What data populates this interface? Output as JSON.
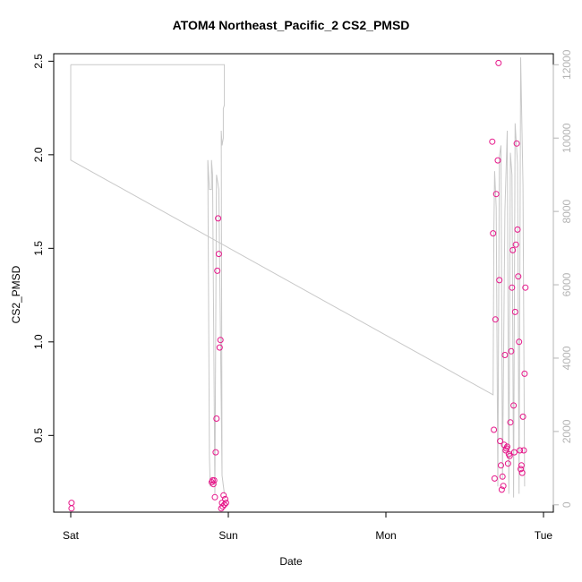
{
  "chart_data": {
    "type": "scatter",
    "title": "ATOM4 Northeast_Pacific_2 CS2_PMSD",
    "xlabel": "Date",
    "ylabel": "CS2_PMSD",
    "x_tick_labels": [
      "Sat",
      "Sun",
      "Mon",
      "Tue"
    ],
    "x_ticks_day": [
      0,
      1,
      2,
      3
    ],
    "ylim": [
      0.09,
      2.54
    ],
    "y_ticks": [
      0.5,
      1.0,
      1.5,
      2.0,
      2.5
    ],
    "y_tick_labels": [
      "0.5",
      "1.0",
      "1.5",
      "2.0",
      "2.5"
    ],
    "y2lim": [
      -200,
      12300
    ],
    "y2_ticks": [
      0,
      2000,
      4000,
      6000,
      8000,
      10000,
      12000
    ],
    "y2_tick_labels": [
      "0",
      "2000",
      "4000",
      "6000",
      "8000",
      "10000",
      "12000"
    ],
    "grid": false,
    "colors": {
      "points": "#e6178a",
      "line": "#c8c8c8",
      "axis": "#000000",
      "right_axis": "#b4b4b4"
    },
    "points": [
      {
        "x": 0.005,
        "y": 0.14
      },
      {
        "x": 0.005,
        "y": 0.11
      },
      {
        "x": 0.895,
        "y": 0.25
      },
      {
        "x": 0.9,
        "y": 0.26
      },
      {
        "x": 0.905,
        "y": 0.24
      },
      {
        "x": 0.91,
        "y": 0.26
      },
      {
        "x": 0.915,
        "y": 0.17
      },
      {
        "x": 0.92,
        "y": 0.41
      },
      {
        "x": 0.925,
        "y": 0.59
      },
      {
        "x": 0.93,
        "y": 1.38
      },
      {
        "x": 0.935,
        "y": 1.66
      },
      {
        "x": 0.94,
        "y": 1.47
      },
      {
        "x": 0.945,
        "y": 0.97
      },
      {
        "x": 0.95,
        "y": 1.01
      },
      {
        "x": 0.955,
        "y": 0.11
      },
      {
        "x": 0.96,
        "y": 0.14
      },
      {
        "x": 0.965,
        "y": 0.12
      },
      {
        "x": 0.97,
        "y": 0.18
      },
      {
        "x": 0.975,
        "y": 0.13
      },
      {
        "x": 0.98,
        "y": 0.16
      },
      {
        "x": 0.985,
        "y": 0.14
      },
      {
        "x": 2.675,
        "y": 2.07
      },
      {
        "x": 2.68,
        "y": 1.58
      },
      {
        "x": 2.685,
        "y": 0.53
      },
      {
        "x": 2.69,
        "y": 0.27
      },
      {
        "x": 2.695,
        "y": 1.12
      },
      {
        "x": 2.7,
        "y": 1.79
      },
      {
        "x": 2.71,
        "y": 1.97
      },
      {
        "x": 2.715,
        "y": 2.49
      },
      {
        "x": 2.72,
        "y": 1.33
      },
      {
        "x": 2.725,
        "y": 0.47
      },
      {
        "x": 2.73,
        "y": 0.34
      },
      {
        "x": 2.735,
        "y": 0.21
      },
      {
        "x": 2.74,
        "y": 0.28
      },
      {
        "x": 2.745,
        "y": 0.23
      },
      {
        "x": 2.75,
        "y": 0.45
      },
      {
        "x": 2.755,
        "y": 0.93
      },
      {
        "x": 2.76,
        "y": 0.42
      },
      {
        "x": 2.765,
        "y": 0.43
      },
      {
        "x": 2.77,
        "y": 0.44
      },
      {
        "x": 2.775,
        "y": 0.35
      },
      {
        "x": 2.78,
        "y": 0.4
      },
      {
        "x": 2.785,
        "y": 0.39
      },
      {
        "x": 2.79,
        "y": 0.57
      },
      {
        "x": 2.795,
        "y": 0.95
      },
      {
        "x": 2.8,
        "y": 1.29
      },
      {
        "x": 2.805,
        "y": 1.49
      },
      {
        "x": 2.81,
        "y": 0.66
      },
      {
        "x": 2.815,
        "y": 0.41
      },
      {
        "x": 2.82,
        "y": 1.16
      },
      {
        "x": 2.825,
        "y": 1.52
      },
      {
        "x": 2.83,
        "y": 2.06
      },
      {
        "x": 2.835,
        "y": 1.6
      },
      {
        "x": 2.84,
        "y": 1.35
      },
      {
        "x": 2.845,
        "y": 1.0
      },
      {
        "x": 2.85,
        "y": 0.42
      },
      {
        "x": 2.855,
        "y": 0.32
      },
      {
        "x": 2.86,
        "y": 0.34
      },
      {
        "x": 2.865,
        "y": 0.3
      },
      {
        "x": 2.87,
        "y": 0.6
      },
      {
        "x": 2.875,
        "y": 0.42
      },
      {
        "x": 2.88,
        "y": 0.83
      },
      {
        "x": 2.885,
        "y": 1.29
      }
    ],
    "line_series": [
      {
        "x": 0.0,
        "y": 12000
      },
      {
        "x": 0.0,
        "y": 9400
      },
      {
        "x": 2.68,
        "y": 3000
      },
      {
        "x": 2.68,
        "y": 3000
      },
      {
        "x": 2.685,
        "y": 7500
      },
      {
        "x": 2.69,
        "y": 9100
      },
      {
        "x": 2.7,
        "y": 8100
      },
      {
        "x": 2.71,
        "y": 500
      },
      {
        "x": 2.72,
        "y": 9500
      },
      {
        "x": 2.73,
        "y": 9800
      },
      {
        "x": 2.74,
        "y": 700
      },
      {
        "x": 2.755,
        "y": 8000
      },
      {
        "x": 2.77,
        "y": 10200
      },
      {
        "x": 2.78,
        "y": 300
      },
      {
        "x": 2.79,
        "y": 9600
      },
      {
        "x": 2.8,
        "y": 9000
      },
      {
        "x": 2.81,
        "y": 200
      },
      {
        "x": 2.82,
        "y": 10400
      },
      {
        "x": 2.835,
        "y": 9300
      },
      {
        "x": 2.845,
        "y": 300
      },
      {
        "x": 2.855,
        "y": 12200
      },
      {
        "x": 2.87,
        "y": 8700
      },
      {
        "x": 2.88,
        "y": 500
      }
    ],
    "line_series_sun": [
      {
        "x": 0.0,
        "y": 12000
      },
      {
        "x": 0.975,
        "y": 12000
      },
      {
        "x": 0.975,
        "y": 10900
      },
      {
        "x": 0.968,
        "y": 10800
      },
      {
        "x": 0.968,
        "y": 10000
      },
      {
        "x": 0.96,
        "y": 9800
      },
      {
        "x": 0.955,
        "y": 10200
      },
      {
        "x": 0.96,
        "y": 800
      },
      {
        "x": 0.975,
        "y": 300
      },
      {
        "x": 0.96,
        "y": 800
      },
      {
        "x": 0.94,
        "y": 8600
      },
      {
        "x": 0.925,
        "y": 9000
      },
      {
        "x": 0.915,
        "y": 300
      },
      {
        "x": 0.9,
        "y": 9000
      },
      {
        "x": 0.893,
        "y": 9400
      },
      {
        "x": 0.893,
        "y": 8600
      },
      {
        "x": 0.88,
        "y": 8600
      },
      {
        "x": 0.87,
        "y": 9400
      },
      {
        "x": 0.87,
        "y": 9300
      },
      {
        "x": 0.88,
        "y": 1300
      },
      {
        "x": 0.885,
        "y": 500
      }
    ]
  }
}
